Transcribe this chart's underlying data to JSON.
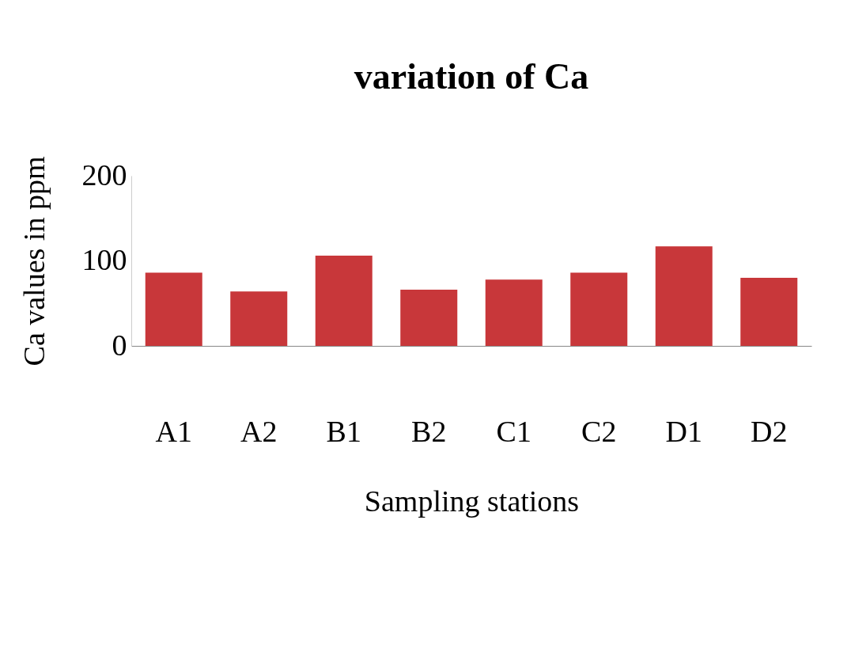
{
  "chart_data": {
    "type": "bar",
    "title": "variation of Ca",
    "xlabel": "Sampling stations",
    "ylabel": "Ca values in ppm",
    "categories": [
      "A1",
      "A2",
      "B1",
      "B2",
      "C1",
      "C2",
      "D1",
      "D2"
    ],
    "values": [
      86,
      64,
      106,
      66,
      78,
      86,
      117,
      80
    ],
    "color": "#c8373a",
    "ylim": [
      0,
      200
    ],
    "yticks": [
      0,
      100,
      200
    ],
    "grid": false
  }
}
